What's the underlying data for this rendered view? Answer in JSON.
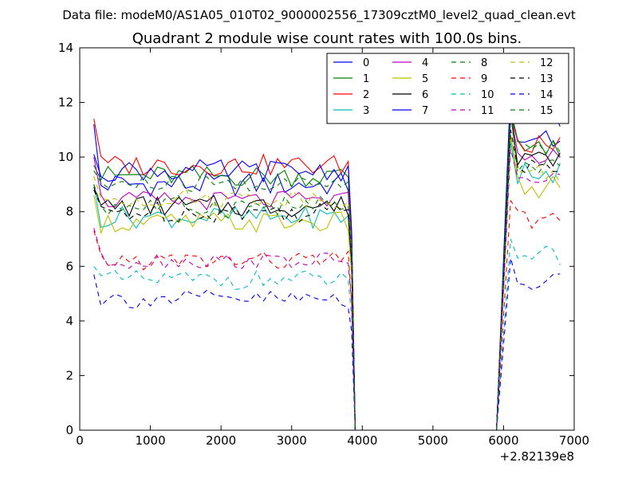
{
  "suptitle": "Data file: modeM0/AS1A05_010T02_9000002556_17309cztM0_level2_quad_clean.evt",
  "chart_data": {
    "type": "line",
    "title": "Quadrant 2 module wise count rates with 100.0s bins.",
    "xlabel": "",
    "ylabel": "",
    "x_offset_label": "+2.82139e8",
    "xlim": [
      0,
      7000
    ],
    "ylim": [
      0,
      14
    ],
    "x_ticks": [
      0,
      1000,
      2000,
      3000,
      4000,
      5000,
      6000,
      7000
    ],
    "y_ticks": [
      0,
      2,
      4,
      6,
      8,
      10,
      12,
      14
    ],
    "grid": false,
    "legend": {
      "placement": "top-right",
      "columns": 4
    },
    "gap": [
      3950,
      5900
    ],
    "segment1": {
      "start": 200,
      "end": 3800,
      "step": 100,
      "drop_at": 3850,
      "zero_at": 3900
    },
    "segment2": {
      "start": 5950,
      "zero_end": 5900,
      "start_rise": 6000,
      "end": 6800,
      "step": 100
    },
    "series": [
      {
        "name": "0",
        "color": "#0000ff",
        "dash": "solid",
        "mean1": 9.0,
        "start1": 11.2,
        "mean2": 10.6,
        "peak2": 11.8,
        "amp": 0.45
      },
      {
        "name": "1",
        "color": "#008000",
        "dash": "solid",
        "mean1": 9.3,
        "start1": 9.7,
        "mean2": 10.3,
        "peak2": 11.5,
        "amp": 0.4
      },
      {
        "name": "2",
        "color": "#ff0000",
        "dash": "solid",
        "mean1": 9.7,
        "start1": 11.4,
        "mean2": 10.4,
        "peak2": 11.7,
        "amp": 0.4
      },
      {
        "name": "3",
        "color": "#00bfbf",
        "dash": "solid",
        "mean1": 7.8,
        "start1": 9.0,
        "mean2": 9.4,
        "peak2": 10.6,
        "amp": 0.4
      },
      {
        "name": "4",
        "color": "#bf00bf",
        "dash": "solid",
        "mean1": 8.4,
        "start1": 10.0,
        "mean2": 10.0,
        "peak2": 11.6,
        "amp": 0.35
      },
      {
        "name": "5",
        "color": "#bfbf00",
        "dash": "solid",
        "mean1": 7.6,
        "start1": 8.6,
        "mean2": 8.9,
        "peak2": 10.8,
        "amp": 0.4
      },
      {
        "name": "6",
        "color": "#000000",
        "dash": "solid",
        "mean1": 8.2,
        "start1": 8.9,
        "mean2": 9.8,
        "peak2": 11.6,
        "amp": 0.4
      },
      {
        "name": "7",
        "color": "#0000ff",
        "dash": "solid",
        "mean1": 9.5,
        "start1": 10.1,
        "mean2": 11.5,
        "peak2": 12.6,
        "amp": 0.4
      },
      {
        "name": "8",
        "color": "#008000",
        "dash": "dashed",
        "mean1": 8.2,
        "start1": 9.0,
        "mean2": 9.6,
        "peak2": 11.6,
        "amp": 0.4
      },
      {
        "name": "9",
        "color": "#ff0000",
        "dash": "dashed",
        "mean1": 6.2,
        "start1": 7.3,
        "mean2": 7.7,
        "peak2": 8.4,
        "amp": 0.35
      },
      {
        "name": "10",
        "color": "#00bfbf",
        "dash": "dashed",
        "mean1": 5.5,
        "start1": 6.0,
        "mean2": 6.4,
        "peak2": 7.0,
        "amp": 0.35
      },
      {
        "name": "11",
        "color": "#bf00bf",
        "dash": "dashed",
        "mean1": 6.2,
        "start1": 7.4,
        "mean2": 9.3,
        "peak2": 10.3,
        "amp": 0.3
      },
      {
        "name": "12",
        "color": "#bfbf00",
        "dash": "dashed",
        "mean1": 8.5,
        "start1": 9.3,
        "mean2": 9.4,
        "peak2": 10.8,
        "amp": 0.35
      },
      {
        "name": "13",
        "color": "#000000",
        "dash": "dashed",
        "mean1": 8.0,
        "start1": 8.8,
        "mean2": 9.6,
        "peak2": 11.0,
        "amp": 0.4
      },
      {
        "name": "14",
        "color": "#0000ff",
        "dash": "dashed",
        "mean1": 4.8,
        "start1": 5.7,
        "mean2": 5.4,
        "peak2": 6.3,
        "amp": 0.35
      },
      {
        "name": "15",
        "color": "#008000",
        "dash": "dashed",
        "mean1": 9.0,
        "start1": 9.5,
        "mean2": 10.4,
        "peak2": 11.7,
        "amp": 0.35
      }
    ]
  }
}
